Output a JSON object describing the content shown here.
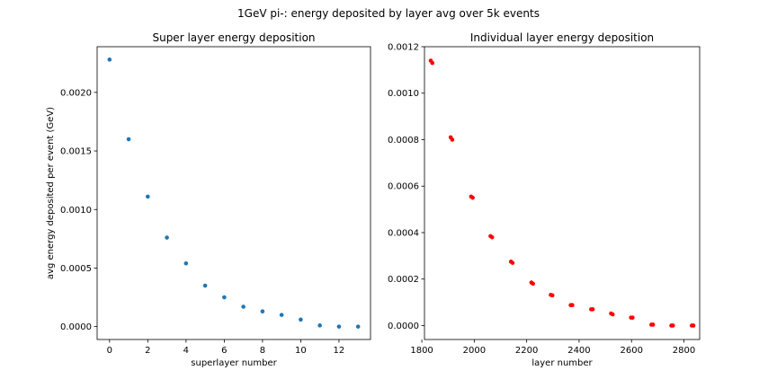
{
  "figure": {
    "title": "1GeV pi-: energy deposited by layer avg over 5k events"
  },
  "chart_data": [
    {
      "type": "scatter",
      "title": "Super layer energy deposition",
      "xlabel": "superlayer number",
      "ylabel": "avg energy deposited per event (GeV)",
      "xlim": [
        -0.65,
        13.65
      ],
      "ylim": [
        -0.00011,
        0.00239
      ],
      "xticks": [
        0,
        2,
        4,
        6,
        8,
        10,
        12
      ],
      "xtick_labels": [
        "0",
        "2",
        "4",
        "6",
        "8",
        "10",
        "12"
      ],
      "yticks": [
        0,
        0.0005,
        0.001,
        0.0015,
        0.002
      ],
      "ytick_labels": [
        "0.0000",
        "0.0005",
        "0.0010",
        "0.0015",
        "0.0020"
      ],
      "color": "#1f77b4",
      "grid": false,
      "series": [
        {
          "x": [
            0,
            1,
            2,
            3,
            4,
            5,
            6,
            7,
            8,
            9,
            10,
            11,
            12,
            13
          ],
          "y": [
            0.00228,
            0.0016,
            0.00111,
            0.00076,
            0.00054,
            0.00035,
            0.00025,
            0.00017,
            0.00013,
            0.0001,
            6e-05,
            1e-05,
            0.0,
            0.0
          ]
        }
      ]
    },
    {
      "type": "scatter",
      "title": "Individual layer energy deposition",
      "xlabel": "layer number",
      "ylabel": "",
      "xlim": [
        1810,
        2860
      ],
      "ylim": [
        -6e-05,
        0.0012
      ],
      "xticks": [
        1800,
        2000,
        2200,
        2400,
        2600,
        2800
      ],
      "xtick_labels": [
        "1800",
        "2000",
        "2200",
        "2400",
        "2600",
        "2800"
      ],
      "yticks": [
        0,
        0.0002,
        0.0004,
        0.0006,
        0.0008,
        0.001,
        0.0012
      ],
      "ytick_labels": [
        "0.0000",
        "0.0002",
        "0.0004",
        "0.0006",
        "0.0008",
        "0.0010",
        "0.0012"
      ],
      "color": "#ff0000",
      "grid": false,
      "series": [
        {
          "x": [
            1834,
            1840,
            1910,
            1916,
            1988,
            1994,
            2062,
            2068,
            2140,
            2146,
            2218,
            2224,
            2292,
            2298,
            2368,
            2374,
            2446,
            2452,
            2522,
            2528,
            2598,
            2604,
            2676,
            2682,
            2752,
            2758,
            2830,
            2836
          ],
          "y": [
            0.00114,
            0.00113,
            0.00081,
            0.0008,
            0.000555,
            0.00055,
            0.000385,
            0.00038,
            0.000275,
            0.00027,
            0.000185,
            0.00018,
            0.000132,
            0.00013,
            8.8e-05,
            8.8e-05,
            7e-05,
            7e-05,
            5.2e-05,
            4.8e-05,
            3.4e-05,
            3.4e-05,
            4e-06,
            4e-06,
            0.0,
            0.0,
            0.0,
            0.0
          ]
        }
      ]
    }
  ]
}
